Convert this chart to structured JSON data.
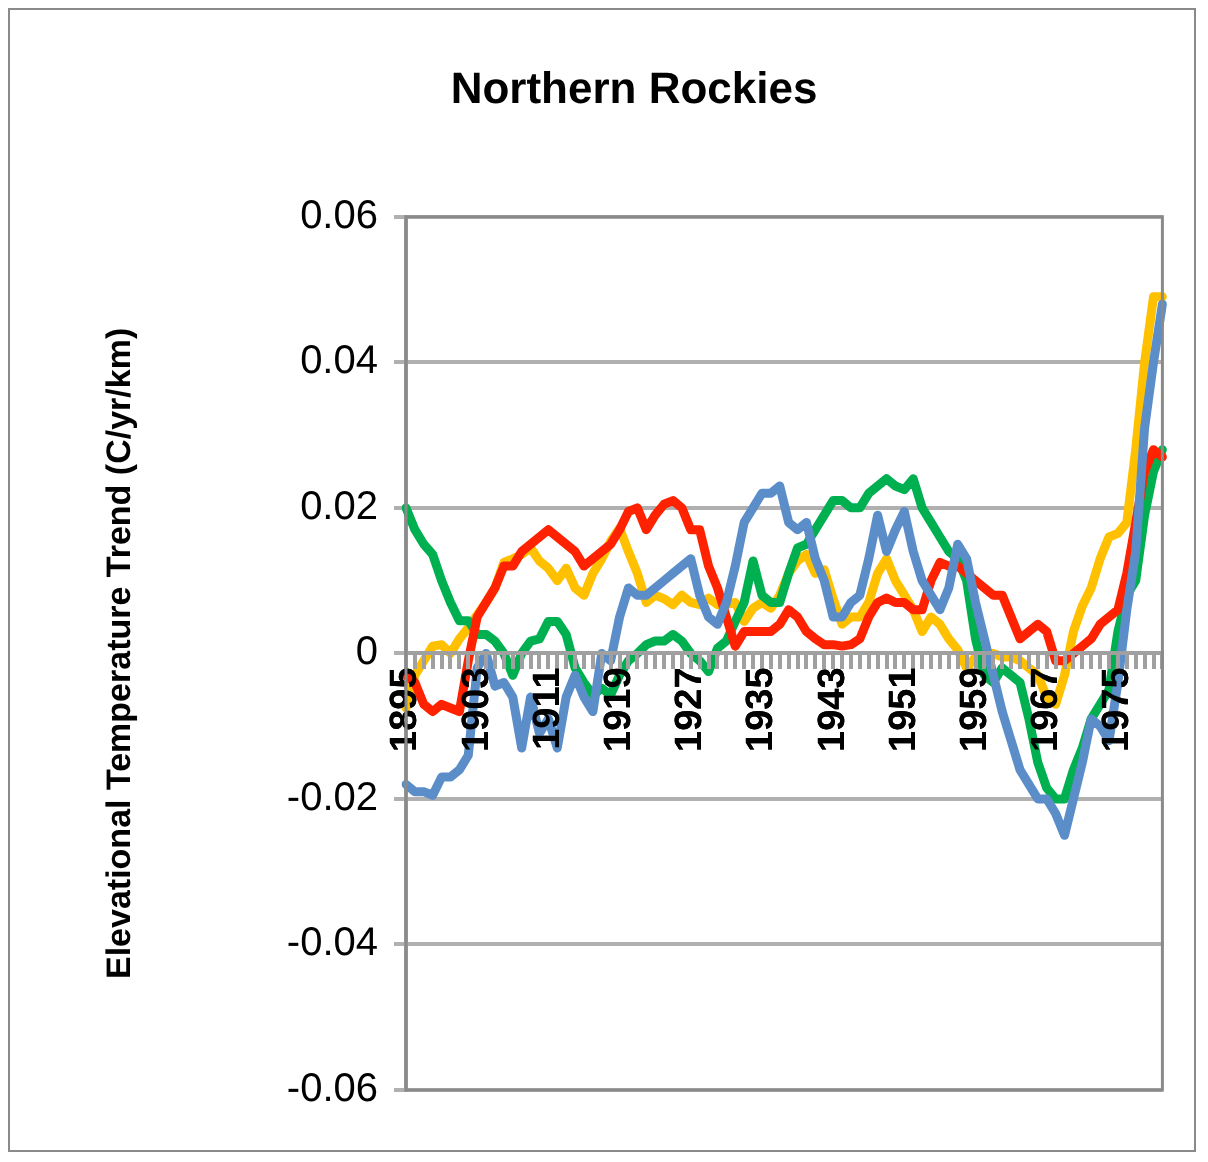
{
  "chart_data": {
    "type": "line",
    "title": "Northern Rockies",
    "ylabel": "Elevational Temperature Trend (C/yr/km)",
    "categories": [
      "1895",
      null,
      null,
      null,
      null,
      null,
      null,
      null,
      "1903",
      null,
      null,
      null,
      null,
      null,
      null,
      null,
      "1911",
      null,
      null,
      null,
      null,
      null,
      null,
      null,
      "1919",
      null,
      null,
      null,
      null,
      null,
      null,
      null,
      "1927",
      null,
      null,
      null,
      null,
      null,
      null,
      null,
      "1935",
      null,
      null,
      null,
      null,
      null,
      null,
      null,
      "1943",
      null,
      null,
      null,
      null,
      null,
      null,
      null,
      "1951",
      null,
      null,
      null,
      null,
      null,
      null,
      null,
      "1959",
      null,
      null,
      null,
      null,
      null,
      null,
      null,
      "1967",
      null,
      null,
      null,
      null,
      null,
      null,
      null,
      "1975",
      null,
      null,
      null,
      null,
      null
    ],
    "series": [
      {
        "color": "#5b8ec8",
        "values": [
          -0.018,
          -0.019,
          -0.019,
          -0.0195,
          -0.017,
          -0.017,
          -0.016,
          -0.014,
          -0.002,
          0,
          -0.0045,
          -0.004,
          -0.006,
          -0.013,
          -0.006,
          -0.011,
          -0.009,
          -0.013,
          -0.006,
          -0.003,
          -0.006,
          -0.008,
          0,
          -0.001,
          0.005,
          0.009,
          0.008,
          0.008,
          0.009,
          0.01,
          0.011,
          0.012,
          0.013,
          0.008,
          0.005,
          0.004,
          0.007,
          0.012,
          0.018,
          0.02,
          0.022,
          0.022,
          0.023,
          0.018,
          0.017,
          0.018,
          0.013,
          0.01,
          0.005,
          0.005,
          0.007,
          0.008,
          0.013,
          0.019,
          0.014,
          0.017,
          0.0195,
          0.014,
          0.01,
          0.008,
          0.006,
          0.009,
          0.015,
          0.013,
          0.007,
          0.002,
          -0.003,
          -0.008,
          -0.012,
          -0.016,
          -0.018,
          -0.02,
          -0.02,
          -0.022,
          -0.025,
          -0.02,
          -0.015,
          -0.009,
          -0.01,
          -0.012,
          -0.004,
          0.006,
          0.014,
          0.031,
          0.04,
          0.048
        ]
      },
      {
        "color": "#ff2200",
        "values": [
          -0.003,
          -0.004,
          -0.007,
          -0.008,
          -0.007,
          -0.0075,
          -0.008,
          -0.001,
          0.005,
          0.007,
          0.009,
          0.012,
          0.012,
          0.014,
          0.015,
          0.016,
          0.017,
          0.016,
          0.015,
          0.014,
          0.012,
          0.013,
          0.014,
          0.015,
          0.017,
          0.0195,
          0.02,
          0.017,
          0.019,
          0.0205,
          0.021,
          0.02,
          0.017,
          0.017,
          0.012,
          0.009,
          0.005,
          0.001,
          0.003,
          0.003,
          0.003,
          0.003,
          0.004,
          0.006,
          0.005,
          0.003,
          0.002,
          0.0012,
          0.0012,
          0.001,
          0.0012,
          0.002,
          0.005,
          0.007,
          0.0076,
          0.007,
          0.007,
          0.006,
          0.006,
          0.01,
          0.0125,
          0.012,
          0.012,
          0.011,
          0.01,
          0.009,
          0.008,
          0.008,
          0.005,
          0.002,
          0.003,
          0.004,
          0.003,
          -0.001,
          -0.001,
          0,
          0.001,
          0.002,
          0.004,
          0.005,
          0.006,
          0.011,
          0.018,
          0.025,
          0.028,
          0.027
        ]
      },
      {
        "color": "#00b050",
        "values": [
          0.02,
          0.017,
          0.015,
          0.0136,
          0.01,
          0.007,
          0.0045,
          0.0045,
          0.0026,
          0.0026,
          0.0017,
          0,
          -0.003,
          0,
          0.0017,
          0.002,
          0.0044,
          0.0044,
          0.0026,
          -0.002,
          -0.004,
          -0.0057,
          -0.0048,
          -0.0057,
          -0.003,
          -0.001,
          0,
          0.0012,
          0.0017,
          0.0017,
          0.0026,
          0.0017,
          0,
          -0.001,
          -0.0025,
          0.0007,
          0.0017,
          0.0044,
          0.007,
          0.0127,
          0.008,
          0.007,
          0.007,
          0.011,
          0.0145,
          0.015,
          0.017,
          0.019,
          0.021,
          0.021,
          0.02,
          0.02,
          0.022,
          0.023,
          0.024,
          0.023,
          0.0225,
          0.024,
          0.02,
          0.018,
          0.016,
          0.014,
          0.013,
          0.01,
          0.002,
          -0.003,
          -0.004,
          -0.002,
          -0.003,
          -0.004,
          -0.009,
          -0.015,
          -0.0185,
          -0.02,
          -0.02,
          -0.016,
          -0.013,
          -0.009,
          -0.007,
          -0.005,
          0.003,
          0.008,
          0.01,
          0.019,
          0.025,
          0.028
        ]
      },
      {
        "color": "#ffc000",
        "values": [
          -0.0075,
          -0.003,
          -0.001,
          0.001,
          0.0012,
          0,
          0.002,
          0.0035,
          0.0053,
          0.007,
          0.009,
          0.0125,
          0.013,
          0.0136,
          0.0145,
          0.0127,
          0.0117,
          0.01,
          0.0117,
          0.009,
          0.008,
          0.011,
          0.013,
          0.0154,
          0.0172,
          0.014,
          0.011,
          0.007,
          0.008,
          0.0075,
          0.0067,
          0.008,
          0.007,
          0.0067,
          0.0076,
          0.0067,
          0.0067,
          0.007,
          0.0044,
          0.0062,
          0.007,
          0.0062,
          0.008,
          0.011,
          0.0127,
          0.0136,
          0.011,
          0.0115,
          0.0075,
          0.004,
          0.005,
          0.005,
          0.007,
          0.011,
          0.013,
          0.01,
          0.008,
          0.006,
          0.003,
          0.005,
          0.004,
          0.002,
          0.0005,
          -0.002,
          -0.0005,
          0,
          0,
          -0.0005,
          -0.0005,
          -0.001,
          -0.002,
          -0.003,
          -0.006,
          -0.007,
          -0.003,
          0.003,
          0.0065,
          0.009,
          0.013,
          0.016,
          0.0165,
          0.018,
          0.028,
          0.04,
          0.049,
          0.049
        ]
      }
    ],
    "ylim": [
      -0.06,
      0.06
    ],
    "yticks": [
      -0.06,
      -0.04,
      -0.02,
      0,
      0.02,
      0.04,
      0.06
    ],
    "grid": "y",
    "legend": false,
    "marker": "none",
    "line_style": "solid"
  }
}
